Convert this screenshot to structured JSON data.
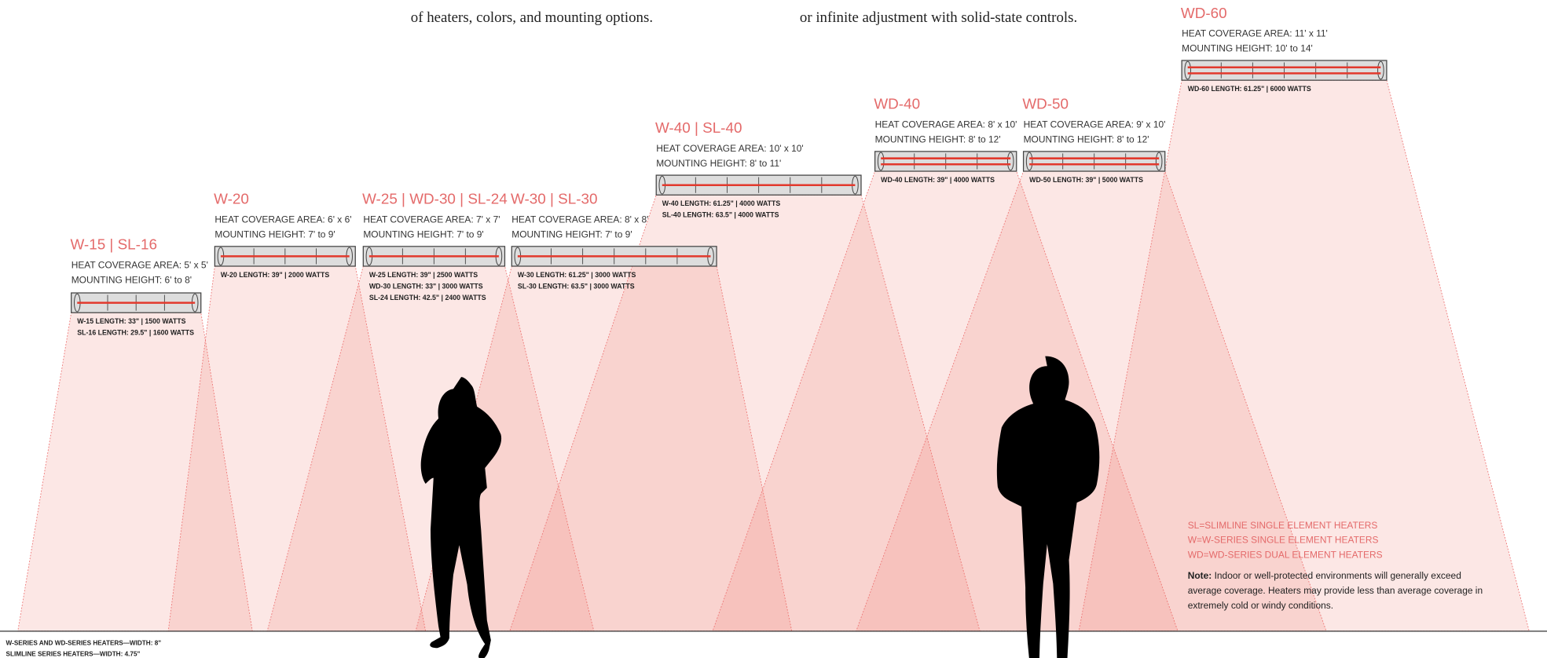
{
  "intro": [
    "of heaters, colors, and mounting options.",
    "or infinite adjustment with solid-state controls."
  ],
  "heaters": [
    {
      "name": "W-15 | SL-16",
      "coverage": "HEAT COVERAGE AREA: 5' x 5'",
      "height": "MOUNTING HEIGHT: 6' to 8'",
      "specs": [
        "W-15 LENGTH: 33\" | 1500 WATTS",
        "SL-16 LENGTH: 29.5\" | 1600 WATTS"
      ]
    },
    {
      "name": "W-20",
      "coverage": "HEAT COVERAGE AREA: 6' x 6'",
      "height": "MOUNTING HEIGHT: 7' to 9'",
      "specs": [
        "W-20 LENGTH: 39\" | 2000 WATTS"
      ]
    },
    {
      "name": "W-25 | WD-30 | SL-24",
      "coverage": "HEAT COVERAGE AREA: 7' x 7'",
      "height": "MOUNTING HEIGHT: 7' to 9'",
      "specs": [
        "W-25 LENGTH: 39\" | 2500 WATTS",
        "WD-30 LENGTH: 33\" | 3000 WATTS",
        "SL-24 LENGTH: 42.5\" | 2400 WATTS"
      ]
    },
    {
      "name": "W-30 | SL-30",
      "coverage": "HEAT COVERAGE AREA: 8' x 8'",
      "height": "MOUNTING HEIGHT: 7' to 9'",
      "specs": [
        "W-30 LENGTH: 61.25\" | 3000 WATTS",
        "SL-30 LENGTH: 63.5\" | 3000 WATTS"
      ]
    },
    {
      "name": "W-40 | SL-40",
      "coverage": "HEAT COVERAGE AREA: 10' x 10'",
      "height": "MOUNTING HEIGHT: 8' to 11'",
      "specs": [
        "W-40 LENGTH: 61.25\" | 4000 WATTS",
        "SL-40 LENGTH: 63.5\" | 4000 WATTS"
      ]
    },
    {
      "name": "WD-40",
      "coverage": "HEAT COVERAGE AREA: 8' x 10'",
      "height": "MOUNTING HEIGHT: 8' to 12'",
      "specs": [
        "WD-40 LENGTH: 39\" | 4000 WATTS"
      ]
    },
    {
      "name": "WD-50",
      "coverage": "HEAT COVERAGE AREA: 9' x 10'",
      "height": "MOUNTING HEIGHT: 8' to 12'",
      "specs": [
        "WD-50 LENGTH: 39\" | 5000 WATTS"
      ]
    },
    {
      "name": "WD-60",
      "coverage": "HEAT COVERAGE AREA: 11' x 11'",
      "height": "MOUNTING HEIGHT: 10' to 14'",
      "specs": [
        "WD-60 LENGTH: 61.25\" | 6000 WATTS"
      ]
    }
  ],
  "legend": [
    "SL=SLIMLINE SINGLE ELEMENT HEATERS",
    "W=W-SERIES SINGLE ELEMENT HEATERS",
    "WD=WD-SERIES DUAL ELEMENT HEATERS"
  ],
  "note": {
    "label": "Note:",
    "lines": [
      "Indoor or well-protected environments will generally exceed",
      "average coverage. Heaters may provide less than average coverage in",
      "extremely cold or windy conditions."
    ]
  },
  "footer": [
    "W-SERIES AND WD-SERIES HEATERS—WIDTH: 8\"",
    "SLIMLINE SERIES HEATERS—WIDTH: 4.75\""
  ]
}
